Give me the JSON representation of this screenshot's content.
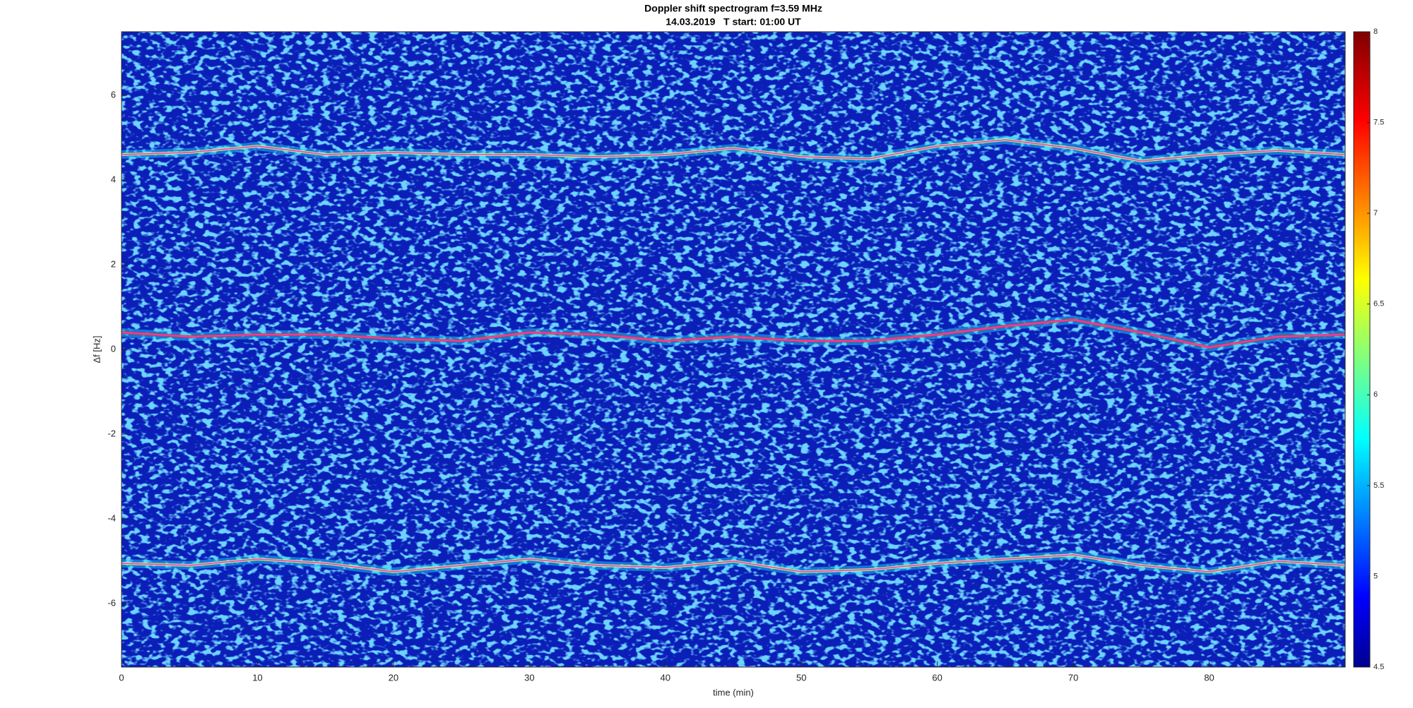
{
  "chart_data": {
    "type": "spectrogram",
    "title": "Doppler shift spectrogram f=3.59 MHz",
    "subtitle": "14.03.2019   T start: 01:00 UT",
    "x_label": "time (min)",
    "y_label": "Δf [Hz]",
    "xlim": [
      0,
      90
    ],
    "xticks": [
      0,
      10,
      20,
      30,
      40,
      50,
      60,
      70,
      80
    ],
    "ylim": [
      -7.5,
      7.5
    ],
    "yticks": [
      -6,
      -4,
      -2,
      0,
      2,
      4,
      6
    ],
    "clim": [
      4.5,
      8
    ],
    "cticks": [
      4.5,
      5,
      5.5,
      6,
      6.5,
      7,
      7.5,
      8
    ],
    "background_color": "#0b1fb8",
    "x": [
      0,
      5,
      10,
      15,
      20,
      25,
      30,
      35,
      40,
      45,
      50,
      55,
      60,
      65,
      70,
      75,
      80,
      85,
      90
    ],
    "series": [
      {
        "color": "#e040e0",
        "values": [
          4.6,
          4.65,
          4.8,
          4.6,
          4.65,
          4.6,
          4.6,
          4.55,
          4.6,
          4.75,
          4.55,
          4.5,
          4.8,
          4.95,
          4.75,
          4.45,
          4.6,
          4.7,
          4.6
        ]
      },
      {
        "color": "#e040e0",
        "values": [
          0.4,
          0.3,
          0.35,
          0.35,
          0.25,
          0.2,
          0.4,
          0.35,
          0.2,
          0.3,
          0.2,
          0.2,
          0.35,
          0.55,
          0.7,
          0.4,
          0.05,
          0.3,
          0.35
        ]
      },
      {
        "color": "#e040e0",
        "values": [
          -5.05,
          -5.1,
          -4.95,
          -5.05,
          -5.25,
          -5.1,
          -4.95,
          -5.1,
          -5.15,
          -5.0,
          -5.25,
          -5.2,
          -5.05,
          -4.95,
          -4.85,
          -5.1,
          -5.25,
          -5.0,
          -5.1
        ]
      }
    ]
  }
}
